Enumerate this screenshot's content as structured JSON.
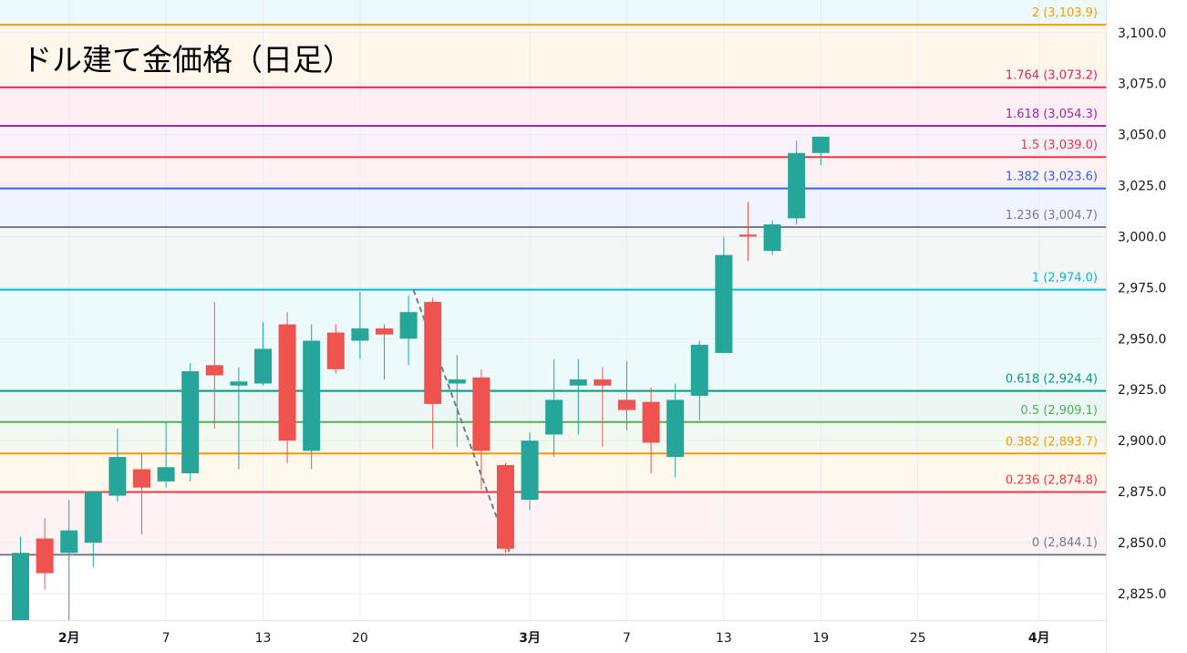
{
  "chart_data": {
    "type": "candlestick",
    "title": "ドル建て金価格（日足）",
    "ylim": [
      2812,
      3116
    ],
    "yticks": [
      2825,
      2850,
      2875,
      2900,
      2925,
      2950,
      2975,
      3000,
      3025,
      3050,
      3075,
      3100
    ],
    "ytick_labels": [
      "2,825.0",
      "2,850.0",
      "2,875.0",
      "2,900.0",
      "2,925.0",
      "2,950.0",
      "2,975.0",
      "3,000.0",
      "3,025.0",
      "3,050.0",
      "3,075.0",
      "3,100.0"
    ],
    "xticks": [
      {
        "label": "2月",
        "index": 2,
        "bold": true
      },
      {
        "label": "7",
        "index": 6,
        "bold": false
      },
      {
        "label": "13",
        "index": 10,
        "bold": false
      },
      {
        "label": "20",
        "index": 14,
        "bold": false
      },
      {
        "label": "3月",
        "index": 21,
        "bold": true
      },
      {
        "label": "7",
        "index": 25,
        "bold": false
      },
      {
        "label": "13",
        "index": 29,
        "bold": false
      },
      {
        "label": "19",
        "index": 33,
        "bold": false
      },
      {
        "label": "25",
        "index": 37,
        "bold": false
      },
      {
        "label": "4月",
        "index": 42,
        "bold": true
      }
    ],
    "colors": {
      "up": "#26a69a",
      "down": "#ef5350"
    },
    "candles": [
      {
        "o": 2812,
        "h": 2853,
        "l": 2812,
        "c": 2845
      },
      {
        "o": 2852,
        "h": 2862,
        "l": 2827,
        "c": 2835
      },
      {
        "o": 2845,
        "h": 2871,
        "l": 2805,
        "c": 2856
      },
      {
        "o": 2850,
        "h": 2875,
        "l": 2838,
        "c": 2875
      },
      {
        "o": 2873,
        "h": 2906,
        "l": 2870,
        "c": 2892
      },
      {
        "o": 2886,
        "h": 2894,
        "l": 2854,
        "c": 2877
      },
      {
        "o": 2880,
        "h": 2909,
        "l": 2877,
        "c": 2887
      },
      {
        "o": 2884,
        "h": 2938,
        "l": 2880,
        "c": 2934
      },
      {
        "o": 2937,
        "h": 2968,
        "l": 2906,
        "c": 2932
      },
      {
        "o": 2927,
        "h": 2936,
        "l": 2886,
        "c": 2929
      },
      {
        "o": 2928,
        "h": 2958,
        "l": 2927,
        "c": 2945
      },
      {
        "o": 2957,
        "h": 2963,
        "l": 2889,
        "c": 2900
      },
      {
        "o": 2895,
        "h": 2957,
        "l": 2886,
        "c": 2949
      },
      {
        "o": 2953,
        "h": 2957,
        "l": 2933,
        "c": 2935
      },
      {
        "o": 2949,
        "h": 2973,
        "l": 2940,
        "c": 2955
      },
      {
        "o": 2955,
        "h": 2957,
        "l": 2930,
        "c": 2952
      },
      {
        "o": 2950,
        "h": 2971,
        "l": 2937,
        "c": 2963
      },
      {
        "o": 2968,
        "h": 2970,
        "l": 2896,
        "c": 2918
      },
      {
        "o": 2928,
        "h": 2942,
        "l": 2897,
        "c": 2930
      },
      {
        "o": 2931,
        "h": 2935,
        "l": 2876,
        "c": 2895
      },
      {
        "o": 2888,
        "h": 2889,
        "l": 2845,
        "c": 2847
      },
      {
        "o": 2871,
        "h": 2904,
        "l": 2866,
        "c": 2900
      },
      {
        "o": 2903,
        "h": 2940,
        "l": 2892,
        "c": 2920
      },
      {
        "o": 2927,
        "h": 2940,
        "l": 2903,
        "c": 2930
      },
      {
        "o": 2930,
        "h": 2936,
        "l": 2897,
        "c": 2927
      },
      {
        "o": 2920,
        "h": 2939,
        "l": 2905,
        "c": 2915
      },
      {
        "o": 2919,
        "h": 2926,
        "l": 2884,
        "c": 2899
      },
      {
        "o": 2892,
        "h": 2928,
        "l": 2882,
        "c": 2920
      },
      {
        "o": 2922,
        "h": 2949,
        "l": 2910,
        "c": 2947
      },
      {
        "o": 2943,
        "h": 3000,
        "l": 2943,
        "c": 2991
      },
      {
        "o": 3001,
        "h": 3017,
        "l": 2988,
        "c": 3000
      },
      {
        "o": 2993,
        "h": 3008,
        "l": 2991,
        "c": 3006
      },
      {
        "o": 3009,
        "h": 3047,
        "l": 3006,
        "c": 3041
      },
      {
        "o": 3041,
        "h": 3049,
        "l": 3035,
        "c": 3049
      }
    ],
    "trend_line": {
      "from": {
        "index": 16.2,
        "value": 2974
      },
      "to": {
        "index": 20.2,
        "value": 2844.1
      },
      "color": "#787b86"
    },
    "fib_levels": [
      {
        "label": "2 (3,103.9)",
        "value": 3103.9,
        "color": "#ff9800",
        "zone": "rgba(255,152,0,0.08)"
      },
      {
        "label": "1.764 (3,073.2)",
        "value": 3073.2,
        "color": "#e91e63",
        "zone": "rgba(233,30,99,0.07)"
      },
      {
        "label": "1.618 (3,054.3)",
        "value": 3054.3,
        "color": "#9c27b0",
        "zone": "rgba(156,39,176,0.06)"
      },
      {
        "label": "1.5 (3,039.0)",
        "value": 3039.0,
        "color": "#f23645",
        "zone": "rgba(242,54,69,0.07)"
      },
      {
        "label": "1.382 (3,023.6)",
        "value": 3023.6,
        "color": "#2962ff",
        "zone": "rgba(41,98,255,0.07)"
      },
      {
        "label": "1.236 (3,004.7)",
        "value": 3004.7,
        "color": "#787b86",
        "zone": "rgba(120,123,134,0.07)"
      },
      {
        "label": "1 (2,974.0)",
        "value": 2974.0,
        "color": "#00bcd4",
        "zone": "rgba(0,188,212,0.07)"
      },
      {
        "label": "0.618 (2,924.4)",
        "value": 2924.4,
        "color": "#089981",
        "zone": "rgba(8,153,129,0.08)"
      },
      {
        "label": "0.5 (2,909.1)",
        "value": 2909.1,
        "color": "#4caf50",
        "zone": "rgba(76,175,80,0.08)"
      },
      {
        "label": "0.382 (2,893.7)",
        "value": 2893.7,
        "color": "#ff9800",
        "zone": "rgba(255,152,0,0.07)"
      },
      {
        "label": "0.236 (2,874.8)",
        "value": 2874.8,
        "color": "#f23645",
        "zone": "rgba(242,54,69,0.06)"
      },
      {
        "label": "0 (2,844.1)",
        "value": 2844.1,
        "color": "#787b86",
        "zone": null
      }
    ],
    "top_zone_color": "rgba(0,188,212,0.07)"
  }
}
